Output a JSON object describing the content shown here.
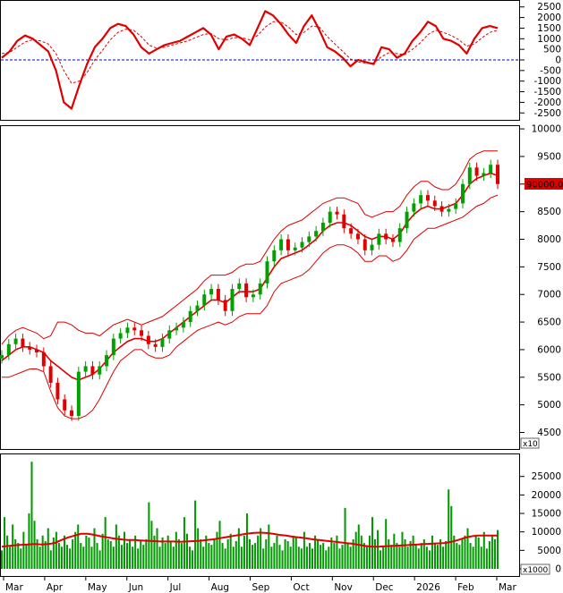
{
  "chart_data": [
    {
      "panel": "macd",
      "type": "line",
      "y_ticks": [
        2500,
        2000,
        1500,
        1000,
        500,
        0,
        -500,
        -1000,
        -1500,
        -2000,
        -2500
      ],
      "ylim": [
        -2700,
        2700
      ],
      "zero_line": true,
      "series": [
        {
          "role": "macd",
          "color": "#e00000",
          "values": [
            100,
            400,
            900,
            1150,
            1000,
            700,
            400,
            -500,
            -2000,
            -2300,
            -1200,
            -200,
            600,
            1000,
            1500,
            1700,
            1600,
            1200,
            600,
            300,
            500,
            700,
            800,
            900,
            1100,
            1300,
            1500,
            1200,
            500,
            1100,
            1200,
            1000,
            700,
            1500,
            2300,
            2100,
            1700,
            1200,
            800,
            1600,
            2100,
            1400,
            600,
            400,
            100,
            -300,
            0,
            -100,
            -200,
            600,
            500,
            100,
            300,
            900,
            1300,
            1800,
            1600,
            1000,
            900,
            700,
            300,
            1000,
            1500,
            1600,
            1500
          ]
        },
        {
          "role": "signal",
          "color": "#e00000",
          "values": [
            300,
            350,
            600,
            850,
            950,
            900,
            750,
            300,
            -500,
            -1100,
            -1000,
            -600,
            0,
            450,
            950,
            1300,
            1450,
            1400,
            1100,
            700,
            550,
            600,
            700,
            800,
            900,
            1050,
            1200,
            1250,
            1000,
            950,
            1050,
            1050,
            950,
            1150,
            1550,
            1800,
            1800,
            1550,
            1200,
            1300,
            1600,
            1550,
            1100,
            750,
            400,
            50,
            -100,
            -150,
            -150,
            150,
            350,
            300,
            250,
            500,
            800,
            1200,
            1400,
            1300,
            1150,
            950,
            650,
            750,
            1050,
            1300,
            1400
          ]
        }
      ]
    },
    {
      "panel": "price",
      "type": "candlestick",
      "y_ticks": [
        10000,
        9500,
        9000,
        8500,
        8000,
        7500,
        7000,
        6500,
        6000,
        5500,
        5000,
        4500
      ],
      "ylim": [
        4200,
        10050
      ],
      "unit_label": "x10",
      "last_price_label": "90000.00",
      "close": [
        5900,
        6100,
        6200,
        6050,
        6000,
        5950,
        5700,
        5400,
        5100,
        4900,
        4800,
        5600,
        5700,
        5550,
        5700,
        5900,
        6200,
        6300,
        6400,
        6350,
        6250,
        6100,
        6050,
        6200,
        6350,
        6400,
        6500,
        6700,
        6800,
        7000,
        7100,
        6900,
        6700,
        7100,
        7200,
        6950,
        7000,
        7200,
        7600,
        7800,
        8000,
        7800,
        7850,
        7950,
        8050,
        8150,
        8300,
        8500,
        8450,
        8200,
        8100,
        8000,
        7800,
        7900,
        8100,
        8000,
        7950,
        8200,
        8500,
        8650,
        8800,
        8700,
        8600,
        8500,
        8550,
        8650,
        9000,
        9300,
        9150,
        9200,
        9350,
        9000
      ],
      "bollinger": {
        "upper": [
          6100,
          6250,
          6350,
          6400,
          6350,
          6300,
          6200,
          6250,
          6500,
          6500,
          6450,
          6350,
          6300,
          6300,
          6250,
          6350,
          6450,
          6500,
          6550,
          6500,
          6450,
          6500,
          6550,
          6600,
          6700,
          6800,
          6900,
          7000,
          7100,
          7250,
          7350,
          7350,
          7350,
          7400,
          7500,
          7550,
          7550,
          7600,
          7800,
          8000,
          8150,
          8250,
          8300,
          8350,
          8450,
          8550,
          8650,
          8700,
          8750,
          8750,
          8700,
          8650,
          8450,
          8400,
          8450,
          8500,
          8500,
          8600,
          8800,
          8950,
          9050,
          9050,
          8950,
          8900,
          8900,
          9000,
          9200,
          9450,
          9550,
          9600,
          9600,
          9600
        ],
        "middle": [
          5800,
          5900,
          6000,
          6050,
          6050,
          6000,
          5950,
          5800,
          5700,
          5600,
          5500,
          5450,
          5500,
          5550,
          5650,
          5800,
          5950,
          6050,
          6150,
          6200,
          6200,
          6150,
          6150,
          6200,
          6300,
          6400,
          6500,
          6600,
          6700,
          6800,
          6900,
          6900,
          6850,
          6950,
          7050,
          7050,
          7050,
          7100,
          7300,
          7500,
          7650,
          7700,
          7750,
          7800,
          7900,
          8000,
          8150,
          8250,
          8300,
          8300,
          8250,
          8150,
          8050,
          8000,
          8050,
          8050,
          8000,
          8100,
          8300,
          8450,
          8550,
          8600,
          8550,
          8550,
          8600,
          8650,
          8800,
          9000,
          9100,
          9150,
          9200,
          9150
        ],
        "lower": [
          5500,
          5500,
          5550,
          5600,
          5650,
          5650,
          5600,
          5250,
          4950,
          4800,
          4750,
          4750,
          4800,
          4900,
          5100,
          5350,
          5600,
          5800,
          5900,
          6000,
          6000,
          5900,
          5850,
          5850,
          5900,
          6050,
          6150,
          6250,
          6350,
          6400,
          6450,
          6500,
          6450,
          6500,
          6600,
          6650,
          6650,
          6650,
          6800,
          7050,
          7200,
          7250,
          7300,
          7350,
          7450,
          7600,
          7750,
          7850,
          7900,
          7900,
          7850,
          7750,
          7600,
          7600,
          7700,
          7700,
          7600,
          7650,
          7800,
          8000,
          8100,
          8200,
          8200,
          8250,
          8300,
          8350,
          8400,
          8500,
          8600,
          8650,
          8750,
          8800
        ]
      }
    },
    {
      "panel": "volume",
      "type": "bar",
      "y_ticks": [
        25000,
        20000,
        15000,
        10000,
        5000,
        0
      ],
      "ylim": [
        0,
        30500
      ],
      "unit_label": "x1000",
      "values": [
        5000,
        14000,
        9000,
        6000,
        12000,
        8000,
        7000,
        5500,
        10000,
        6500,
        15000,
        29000,
        13000,
        8000,
        6000,
        9000,
        7500,
        11000,
        5000,
        8500,
        10000,
        7000,
        6000,
        9000,
        6500,
        5500,
        8000,
        10000,
        12000,
        7000,
        6000,
        9000,
        8500,
        6000,
        11000,
        7000,
        5000,
        9500,
        14000,
        8000,
        7500,
        6000,
        12000,
        9000,
        6500,
        10000,
        7000,
        8000,
        6000,
        9000,
        5500,
        7500,
        6500,
        8000,
        18000,
        13000,
        9000,
        11000,
        6000,
        8500,
        7000,
        9000,
        7500,
        6000,
        10000,
        8000,
        7000,
        14000,
        9500,
        6000,
        5000,
        18500,
        11000,
        8000,
        6000,
        9000,
        7000,
        6500,
        8000,
        10000,
        13000,
        7000,
        5500,
        8000,
        9500,
        6000,
        7500,
        11000,
        6000,
        9000,
        15000,
        8000,
        6500,
        7000,
        9000,
        11000,
        5500,
        8000,
        12000,
        6000,
        7000,
        9000,
        6500,
        5000,
        8000,
        7500,
        6000,
        9000,
        8500,
        6000,
        5500,
        10000,
        6000,
        7000,
        5500,
        9000,
        8000,
        6500,
        7000,
        5000,
        6000,
        8500,
        7000,
        9000,
        5500,
        6500,
        16500,
        7000,
        6000,
        8000,
        10000,
        12000,
        9000,
        7000,
        6000,
        9000,
        14000,
        8000,
        10500,
        5000,
        6000,
        13500,
        8000,
        6500,
        9500,
        7000,
        6000,
        10000,
        8000,
        6000,
        7500,
        9000,
        6500,
        5500,
        7000,
        8000,
        6000,
        5000,
        9000,
        7000,
        6500,
        8000,
        6000,
        7500,
        21500,
        17000,
        9000,
        7000,
        6500,
        8000,
        9000,
        11000,
        7000,
        6000,
        9000,
        8500,
        6000,
        10000,
        5500,
        7500,
        9000,
        8000,
        10500
      ],
      "moving_average": [
        6000,
        6200,
        6400,
        6500,
        6600,
        6700,
        6600,
        6700,
        7000,
        7800,
        8500,
        9000,
        9500,
        9500,
        9200,
        8800,
        8500,
        8200,
        8000,
        7800,
        7800,
        7700,
        7600,
        7500,
        7400,
        7400,
        7400,
        7300,
        7400,
        7500,
        7600,
        7800,
        8000,
        8300,
        8600,
        8900,
        9200,
        9500,
        9700,
        9800,
        9700,
        9500,
        9200,
        9000,
        8700,
        8500,
        8300,
        8000,
        7800,
        7600,
        7400,
        7200,
        7000,
        6800,
        6500,
        6200,
        6000,
        6000,
        6100,
        6200,
        6300,
        6400,
        6500,
        6600,
        6700,
        6800,
        6900,
        7000,
        7300,
        7800,
        8400,
        8800,
        9000,
        9000,
        9000,
        9000
      ]
    }
  ],
  "x_axis": {
    "labels": [
      "Mar",
      "Apr",
      "May",
      "Jun",
      "Jul",
      "Aug",
      "Sep",
      "Oct",
      "Nov",
      "Dec",
      "2026",
      "Feb",
      "Mar"
    ]
  },
  "colors": {
    "up": "#00a000",
    "down": "#e00000",
    "band": "#e00000",
    "volume": "#009a00",
    "volume_ma": "#e00000",
    "zero_line": "#0000cc",
    "last_price_bg": "#e00000"
  }
}
